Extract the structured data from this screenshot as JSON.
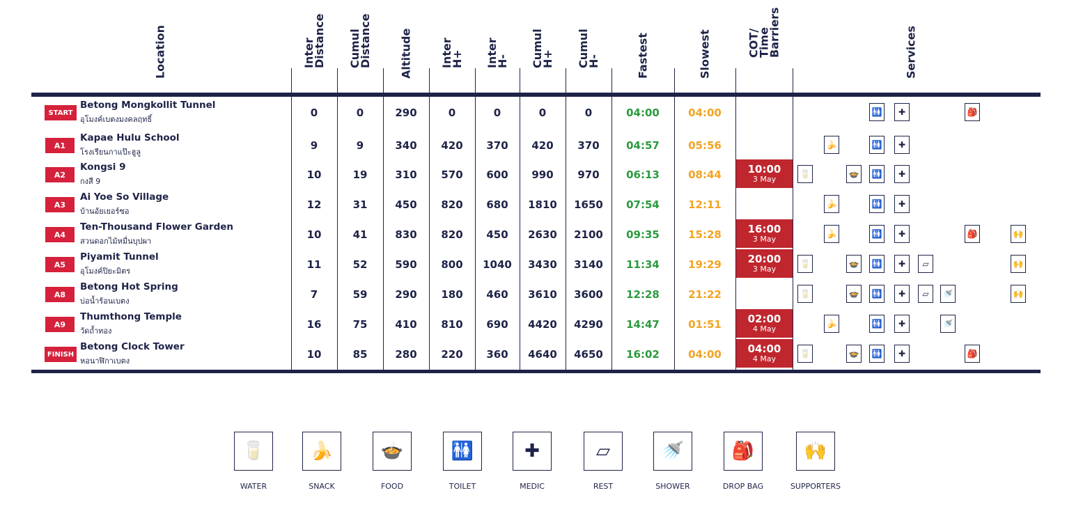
{
  "headers": {
    "location": "Location",
    "inter_distance": "Inter\nDistance",
    "cumul_distance": "Cumul\nDistance",
    "altitude": "Altitude",
    "inter_hplus": "Inter\nH+",
    "inter_hminus": "Inter\nH-",
    "cumul_hplus": "Cumul\nH+",
    "cumul_hminus": "Cumul\nH-",
    "fastest": "Fastest",
    "slowest": "Slowest",
    "cot": "COT/\nTime\nBarriers",
    "services": "Services"
  },
  "rows": [
    {
      "badge": "START",
      "name": "Betong Mongkollit Tunnel",
      "thai": "อุโมงค์เบตงมงคลฤทธิ์",
      "inter_d": "0",
      "cumul_d": "0",
      "alt": "290",
      "inter_hp": "0",
      "inter_hm": "0",
      "cumul_hp": "0",
      "cumul_hm": "0",
      "fast": "04:00",
      "slow": "04:00",
      "cot_time": "",
      "cot_date": "",
      "services": [
        "toilet",
        "medic",
        "dropbag"
      ]
    },
    {
      "badge": "A1",
      "name": "Kapae Hulu School",
      "thai": "โรงเรียนกาแป๊ะฮูลู",
      "inter_d": "9",
      "cumul_d": "9",
      "alt": "340",
      "inter_hp": "420",
      "inter_hm": "370",
      "cumul_hp": "420",
      "cumul_hm": "370",
      "fast": "04:57",
      "slow": "05:56",
      "cot_time": "",
      "cot_date": "",
      "services": [
        "snack",
        "toilet",
        "medic"
      ]
    },
    {
      "badge": "A2",
      "name": "Kongsi 9",
      "thai": "กงสี 9",
      "inter_d": "10",
      "cumul_d": "19",
      "alt": "310",
      "inter_hp": "570",
      "inter_hm": "600",
      "cumul_hp": "990",
      "cumul_hm": "970",
      "fast": "06:13",
      "slow": "08:44",
      "cot_time": "10:00",
      "cot_date": "3 May",
      "services": [
        "water",
        "food",
        "toilet",
        "medic"
      ]
    },
    {
      "badge": "A3",
      "name": "Ai Yoe So Village",
      "thai": "บ้านอัยเยอร์ซอ",
      "inter_d": "12",
      "cumul_d": "31",
      "alt": "450",
      "inter_hp": "820",
      "inter_hm": "680",
      "cumul_hp": "1810",
      "cumul_hm": "1650",
      "fast": "07:54",
      "slow": "12:11",
      "cot_time": "",
      "cot_date": "",
      "services": [
        "snack",
        "toilet",
        "medic"
      ]
    },
    {
      "badge": "A4",
      "name": "Ten-Thousand Flower Garden",
      "thai": "สวนดอกไม้หมื่นบุปผา",
      "inter_d": "10",
      "cumul_d": "41",
      "alt": "830",
      "inter_hp": "820",
      "inter_hm": "450",
      "cumul_hp": "2630",
      "cumul_hm": "2100",
      "fast": "09:35",
      "slow": "15:28",
      "cot_time": "16:00",
      "cot_date": "3 May",
      "services": [
        "snack",
        "toilet",
        "medic",
        "dropbag",
        "supporters"
      ]
    },
    {
      "badge": "A5",
      "name": "Piyamit Tunnel",
      "thai": "อุโมงค์ปิยะมิตร",
      "inter_d": "11",
      "cumul_d": "52",
      "alt": "590",
      "inter_hp": "800",
      "inter_hm": "1040",
      "cumul_hp": "3430",
      "cumul_hm": "3140",
      "fast": "11:34",
      "slow": "19:29",
      "cot_time": "20:00",
      "cot_date": "3 May",
      "services": [
        "water",
        "food",
        "toilet",
        "medic",
        "rest",
        "supporters"
      ]
    },
    {
      "badge": "A8",
      "name": "Betong Hot Spring",
      "thai": "บ่อน้ำร้อนเบตง",
      "inter_d": "7",
      "cumul_d": "59",
      "alt": "290",
      "inter_hp": "180",
      "inter_hm": "460",
      "cumul_hp": "3610",
      "cumul_hm": "3600",
      "fast": "12:28",
      "slow": "21:22",
      "cot_time": "",
      "cot_date": "",
      "services": [
        "water",
        "food",
        "toilet",
        "medic",
        "rest",
        "shower",
        "supporters"
      ]
    },
    {
      "badge": "A9",
      "name": "Thumthong Temple",
      "thai": "วัดถ้ำทอง",
      "inter_d": "16",
      "cumul_d": "75",
      "alt": "410",
      "inter_hp": "810",
      "inter_hm": "690",
      "cumul_hp": "4420",
      "cumul_hm": "4290",
      "fast": "14:47",
      "slow": "01:51",
      "cot_time": "02:00",
      "cot_date": "4 May",
      "services": [
        "snack",
        "toilet",
        "medic",
        "shower"
      ]
    },
    {
      "badge": "FINISH",
      "name": "Betong Clock Tower",
      "thai": "หอนาฬิกาเบตง",
      "inter_d": "10",
      "cumul_d": "85",
      "alt": "280",
      "inter_hp": "220",
      "inter_hm": "360",
      "cumul_hp": "4640",
      "cumul_hm": "4650",
      "fast": "16:02",
      "slow": "04:00",
      "cot_time": "04:00",
      "cot_date": "4 May",
      "services": [
        "water",
        "food",
        "toilet",
        "medic",
        "dropbag"
      ]
    }
  ],
  "legend": [
    {
      "key": "water",
      "label": "WATER",
      "icon": "water-icon",
      "glyph": "🥛"
    },
    {
      "key": "snack",
      "label": "SNACK",
      "icon": "snack-icon",
      "glyph": "🍌"
    },
    {
      "key": "food",
      "label": "FOOD",
      "icon": "food-icon",
      "glyph": "🍲"
    },
    {
      "key": "toilet",
      "label": "TOILET",
      "icon": "toilet-icon",
      "glyph": "🚻"
    },
    {
      "key": "medic",
      "label": "MEDIC",
      "icon": "medic-icon",
      "glyph": "✚"
    },
    {
      "key": "rest",
      "label": "REST",
      "icon": "rest-icon",
      "glyph": "▱"
    },
    {
      "key": "shower",
      "label": "SHOWER",
      "icon": "shower-icon",
      "glyph": "🚿"
    },
    {
      "key": "dropbag",
      "label": "DROP BAG",
      "icon": "drop-bag-icon",
      "glyph": "🎒"
    },
    {
      "key": "supporters",
      "label": "SUPPORTERS",
      "icon": "supporters-icon",
      "glyph": "🙌"
    }
  ],
  "colors": {
    "navy": "#1e2347",
    "red_badge": "#d5213b",
    "cot_red": "#c0262e",
    "fastest_green": "#2b9a3e",
    "slowest_orange": "#f2a420"
  }
}
